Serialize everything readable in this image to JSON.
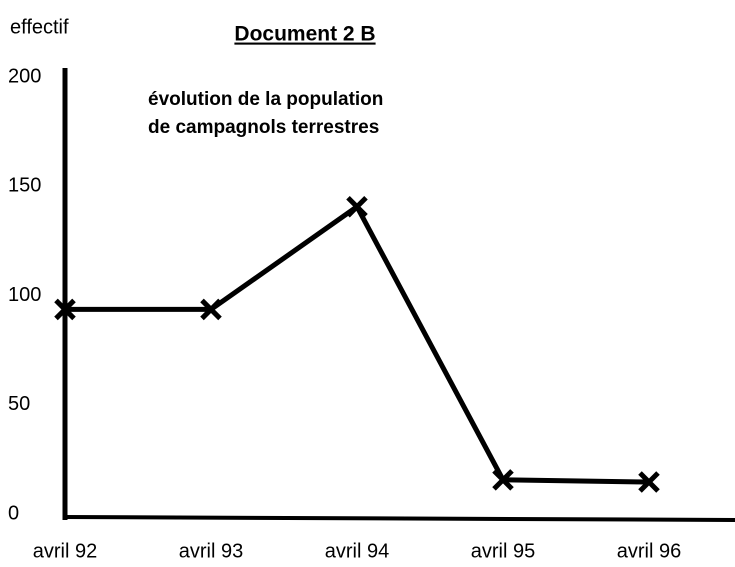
{
  "chart_data": {
    "type": "line",
    "title": "Document 2 B",
    "subtitle": [
      "évolution de la population",
      "de campagnols terrestres"
    ],
    "ylabel": "effectif",
    "categories": [
      "avril 92",
      "avril 93",
      "avril 94",
      "avril 95",
      "avril 96"
    ],
    "values": [
      95,
      95,
      142,
      17,
      16
    ],
    "color": "#000000",
    "ylim": [
      0,
      200
    ],
    "yticks": [
      0,
      50,
      100,
      150,
      200
    ],
    "grid": false
  }
}
